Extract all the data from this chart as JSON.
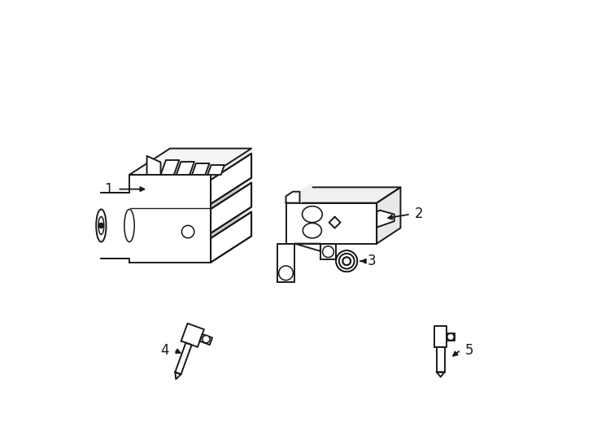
{
  "background_color": "#ffffff",
  "line_color": "#1a1a1a",
  "line_width": 1.4,
  "label_fontsize": 12,
  "fig_w": 7.34,
  "fig_h": 5.4,
  "xlim": [
    0,
    7.34
  ],
  "ylim": [
    0,
    5.4
  ]
}
